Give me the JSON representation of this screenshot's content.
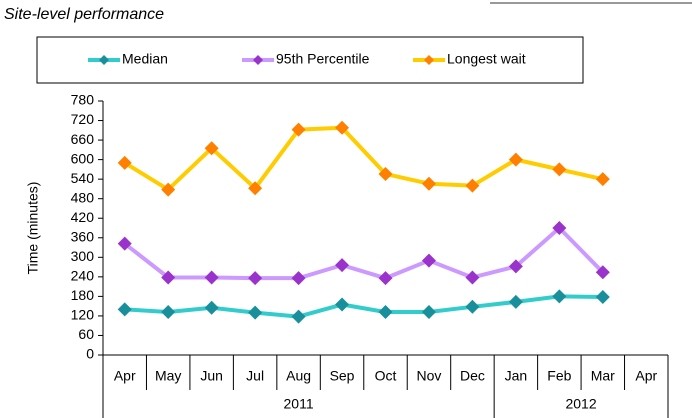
{
  "chart_data": {
    "type": "line",
    "title": "Site-level performance",
    "y_label": "Time (minutes)",
    "categories": [
      "Apr",
      "May",
      "Jun",
      "Jul",
      "Aug",
      "Sep",
      "Oct",
      "Nov",
      "Dec",
      "Jan",
      "Feb",
      "Mar",
      "Apr"
    ],
    "x_groups": [
      {
        "label": "2011",
        "first": 0,
        "last": 8
      },
      {
        "label": "2012",
        "first": 9,
        "last": 12
      }
    ],
    "series": [
      {
        "name": "Median",
        "color": "#33cccc",
        "marker_color": "#1a8f9c",
        "values": [
          140,
          132,
          145,
          130,
          118,
          155,
          132,
          132,
          148,
          163,
          180,
          178,
          null
        ]
      },
      {
        "name": "95th Percentile",
        "color": "#cc99ff",
        "marker_color": "#9933cc",
        "values": [
          342,
          238,
          238,
          236,
          236,
          276,
          236,
          290,
          238,
          272,
          390,
          254,
          null
        ]
      },
      {
        "name": "Longest wait",
        "color": "#ffcc00",
        "marker_color": "#ff8000",
        "values": [
          590,
          508,
          635,
          512,
          692,
          698,
          556,
          526,
          520,
          600,
          570,
          540,
          null
        ]
      }
    ],
    "ylim": [
      0,
      780
    ],
    "yticks": [
      0,
      60,
      120,
      180,
      240,
      300,
      360,
      420,
      480,
      540,
      600,
      660,
      720,
      780
    ],
    "grid": false,
    "legend": "top"
  }
}
